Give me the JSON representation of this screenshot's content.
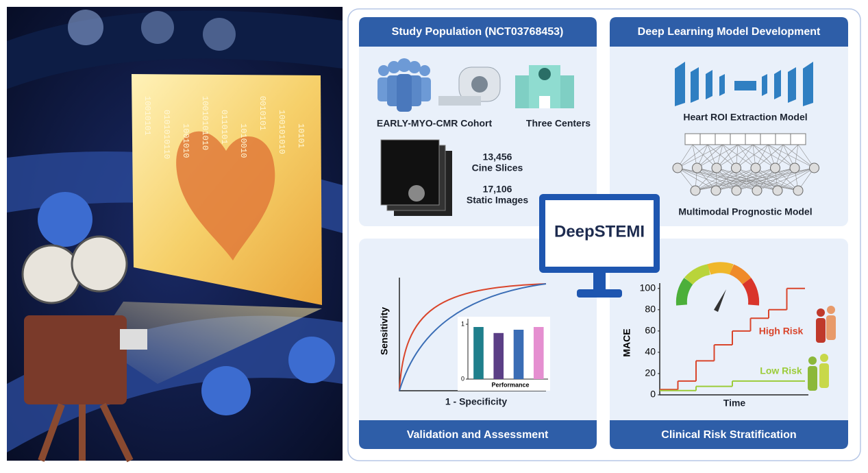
{
  "left_panel": {
    "binary": [
      "10010101",
      "0101010110",
      "1001010",
      "10010101010",
      "0110101",
      "1010010",
      "0010101",
      "100101010",
      "10101"
    ]
  },
  "study_population": {
    "title": "Study Population (NCT03768453)",
    "cohort": "EARLY-MYO-CMR Cohort",
    "centers": "Three Centers",
    "cine_count": "13,456",
    "cine_label": "Cine Slices",
    "static_count": "17,106",
    "static_label": "Static Images"
  },
  "model_development": {
    "title": "Deep Learning Model Development",
    "roi_model": "Heart ROI Extraction Model",
    "prognostic_model": "Multimodal Prognostic Model"
  },
  "center": {
    "label": "DeepSTEMI"
  },
  "validation": {
    "title": "Validation and Assessment",
    "ylabel": "Sensitivity",
    "xlabel": "1 - Specificity",
    "bar_chart": {
      "label": "Performance",
      "ylim": [
        0,
        1
      ],
      "yticks": [
        0,
        1
      ],
      "values": [
        0.95,
        0.84,
        0.9,
        0.95
      ],
      "colors": [
        "#1f7f8c",
        "#5b3f86",
        "#3a6db5",
        "#e58fd0"
      ]
    }
  },
  "risk": {
    "title": "Clinical Risk Stratification",
    "ylabel": "MACE",
    "xlabel": "Time",
    "ylim": [
      0,
      105
    ],
    "yticks": [
      0,
      20,
      40,
      60,
      80,
      100
    ],
    "series": [
      {
        "name": "High Risk",
        "color": "#d9452b",
        "values": [
          5,
          13,
          32,
          47,
          60,
          72,
          80,
          100
        ]
      },
      {
        "name": "Low Risk",
        "color": "#9ccc3a",
        "values": [
          4,
          4,
          8,
          8,
          13,
          13,
          13,
          13
        ]
      }
    ]
  }
}
